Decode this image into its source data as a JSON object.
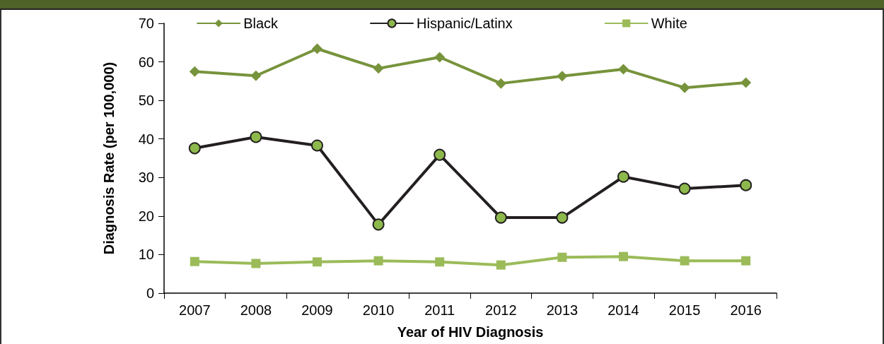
{
  "chart_data": {
    "type": "line",
    "xlabel": "Year of HIV Diagnosis",
    "ylabel": "Diagnosis Rate (per 100,000)",
    "categories": [
      "2007",
      "2008",
      "2009",
      "2010",
      "2011",
      "2012",
      "2013",
      "2014",
      "2015",
      "2016"
    ],
    "series": [
      {
        "name": "Black",
        "color": "#77933c",
        "marker": "diamond",
        "values": [
          57.5,
          56.4,
          63.4,
          58.3,
          61.2,
          54.4,
          56.3,
          58.1,
          53.3,
          54.6
        ]
      },
      {
        "name": "Hispanic/Latinx",
        "color": "#231f20",
        "marker": "circle",
        "values": [
          37.6,
          40.5,
          38.3,
          17.8,
          35.9,
          19.6,
          19.6,
          30.2,
          27.1,
          28.0
        ]
      },
      {
        "name": "White",
        "color": "#9bbb59",
        "marker": "square",
        "values": [
          8.2,
          7.7,
          8.1,
          8.4,
          8.1,
          7.3,
          9.3,
          9.5,
          8.4,
          8.4
        ]
      }
    ],
    "ylim": [
      0,
      70
    ],
    "yticks": [
      0,
      10,
      20,
      30,
      40,
      50,
      60,
      70
    ],
    "grid": false,
    "legend": "top",
    "line_style": "solid"
  }
}
